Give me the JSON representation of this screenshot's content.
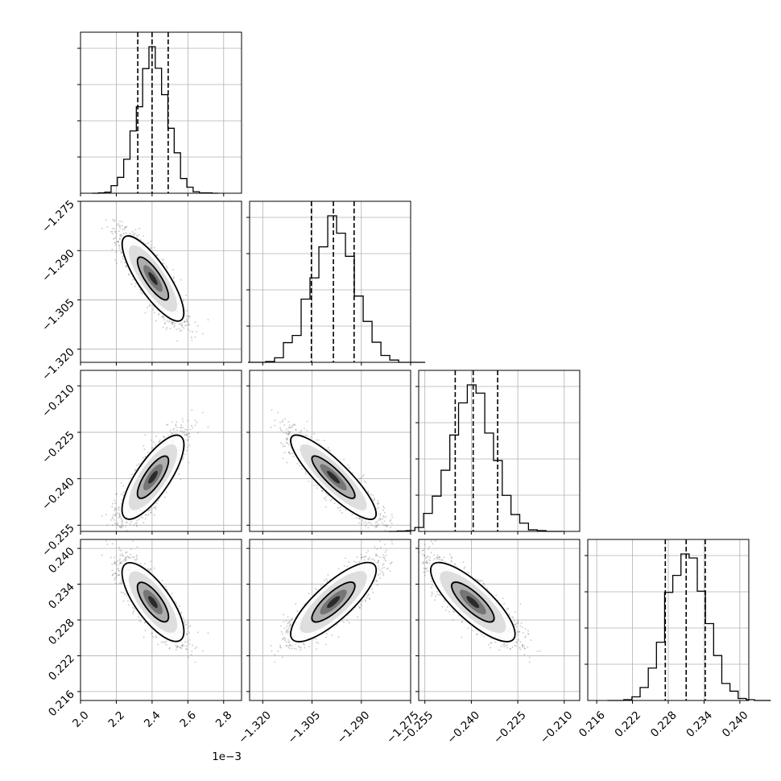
{
  "chart_data": {
    "type": "corner",
    "grid": true,
    "x_offset_label": "1e−3",
    "parameters": [
      {
        "range": [
          2.0,
          2.9
        ],
        "ticks": [
          2.0,
          2.2,
          2.4,
          2.6,
          2.8
        ],
        "tick_labels": [
          "2.0",
          "2.2",
          "2.4",
          "2.6",
          "2.8"
        ],
        "mean": 2.405,
        "sd": 0.085,
        "quantiles": [
          2.32,
          2.4,
          2.49
        ]
      },
      {
        "range": [
          -1.324,
          -1.275
        ],
        "ticks": [
          -1.32,
          -1.305,
          -1.29,
          -1.275
        ],
        "tick_labels": [
          "−1.320",
          "−1.305",
          "−1.290",
          "−1.275"
        ],
        "mean": -1.2985,
        "sd": 0.0065,
        "quantiles": [
          -1.3052,
          -1.2985,
          -1.2922
        ]
      },
      {
        "range": [
          -0.257,
          -0.205
        ],
        "ticks": [
          -0.255,
          -0.24,
          -0.225,
          -0.21
        ],
        "tick_labels": [
          "−0.255",
          "−0.240",
          "−0.225",
          "−0.210"
        ],
        "mean": -0.2395,
        "sd": 0.0068,
        "quantiles": [
          -0.2452,
          -0.2394,
          -0.2315
        ]
      },
      {
        "range": [
          0.2145,
          0.2415
        ],
        "ticks": [
          0.216,
          0.222,
          0.228,
          0.234,
          0.24
        ],
        "tick_labels": [
          "0.216",
          "0.222",
          "0.228",
          "0.234",
          "0.240"
        ],
        "mean": 0.231,
        "sd": 0.0033,
        "quantiles": [
          0.2275,
          0.231,
          0.2342
        ]
      }
    ],
    "correlations": [
      [
        1.0,
        -0.85,
        0.82,
        -0.8
      ],
      [
        -0.85,
        1.0,
        -0.9,
        0.85
      ],
      [
        0.82,
        -0.9,
        1.0,
        -0.85
      ],
      [
        -0.8,
        0.85,
        -0.85,
        1.0
      ]
    ],
    "hist_bins": 20,
    "contour_levels": [
      0.39,
      0.86
    ]
  }
}
